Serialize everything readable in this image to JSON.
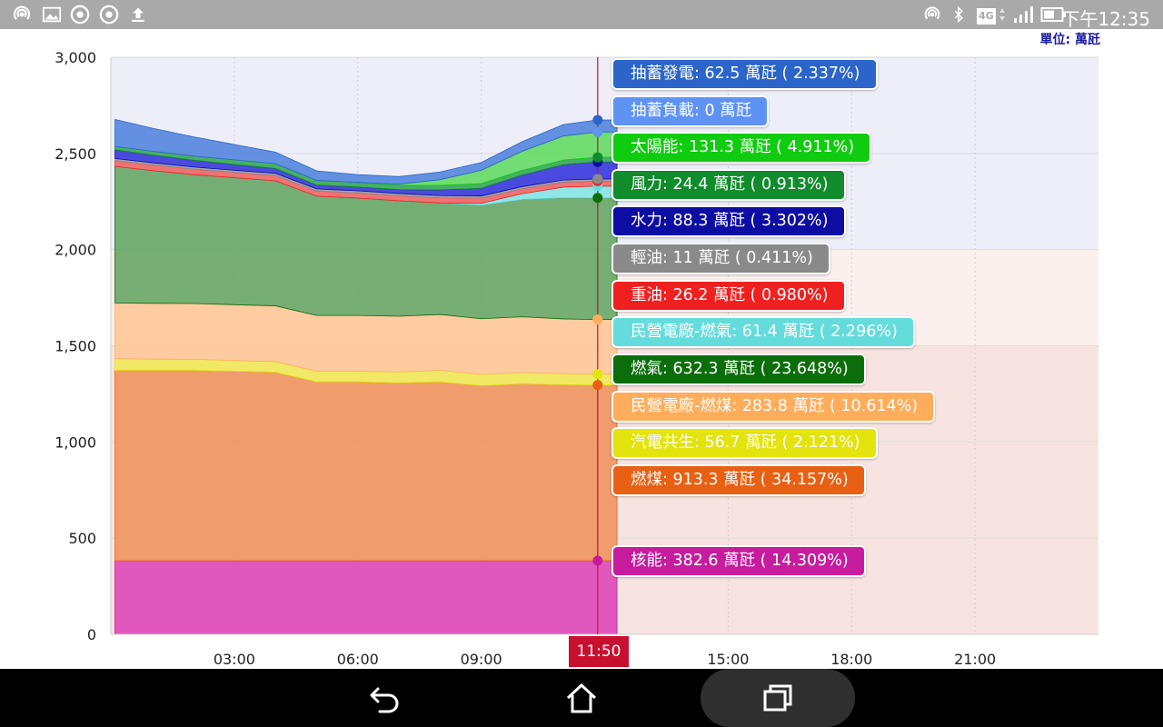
{
  "status_bar": {
    "time": "下午12:35",
    "network": "4G",
    "left_icons": [
      "hotspot-icon",
      "image-icon",
      "chrome-icon",
      "chrome-icon",
      "upload-icon"
    ],
    "right_icons": [
      "hotspot-icon",
      "bluetooth-icon",
      "network-4g-icon",
      "signal-icon",
      "battery-icon"
    ]
  },
  "unit_label": "單位: 萬瓩",
  "cursor_time": "11:50",
  "nav_bar": {
    "icons": [
      "back-icon",
      "home-icon",
      "recents-icon"
    ]
  },
  "chart_data": {
    "type": "area",
    "stacked": true,
    "x_unit": "hour",
    "xlim": [
      0,
      24
    ],
    "ylim": [
      0,
      3000
    ],
    "y_ticks": [
      0,
      500,
      1000,
      1500,
      2000,
      2500,
      3000
    ],
    "y_tick_labels": [
      "0",
      "500",
      "1,000",
      "1,500",
      "2,000",
      "2,500",
      "3,000"
    ],
    "x_ticks": [
      3,
      6,
      9,
      15,
      18,
      21
    ],
    "x_tick_labels": [
      "03:00",
      "06:00",
      "09:00",
      "15:00",
      "18:00",
      "21:00"
    ],
    "cursor_x": 11.83,
    "background_bands": [
      {
        "from": 0,
        "to": 1500,
        "color": "#f7e4e1"
      },
      {
        "from": 1500,
        "to": 2000,
        "color": "#fbf0ed"
      },
      {
        "from": 2000,
        "to": 3000,
        "color": "#eeeef8"
      }
    ],
    "x": [
      0.1,
      1,
      2,
      3,
      4,
      5,
      6,
      7,
      8,
      9,
      10,
      11,
      11.83,
      12.3
    ],
    "series": [
      {
        "name": "核能",
        "color": "#dd3fb6",
        "label_color": "#c81c9e",
        "values": [
          382.6,
          382.6,
          382.6,
          382.6,
          382.6,
          382.6,
          382.6,
          382.6,
          382.6,
          382.6,
          382.6,
          382.6,
          382.6,
          382.6
        ]
      },
      {
        "name": "燃煤",
        "color": "#ef8f57",
        "label_color": "#e86013",
        "values": [
          990,
          990,
          990,
          985,
          980,
          930,
          930,
          925,
          930,
          910,
          920,
          915,
          913.3,
          913.3
        ]
      },
      {
        "name": "汽電共生",
        "color": "#f0ea50",
        "label_color": "#e3e30e",
        "values": [
          60,
          58,
          57,
          56,
          55,
          55,
          55,
          56,
          60,
          58,
          58,
          57,
          56.7,
          56.7
        ]
      },
      {
        "name": "民營電廠-燃煤",
        "color": "#ffc593",
        "label_color": "#ffad5b",
        "values": [
          290,
          290,
          290,
          290,
          290,
          290,
          290,
          290,
          290,
          290,
          290,
          285,
          283.8,
          283.8
        ]
      },
      {
        "name": "燃氣",
        "color": "#5ea25e",
        "label_color": "#0b6e0b",
        "values": [
          710,
          690,
          670,
          660,
          650,
          620,
          610,
          600,
          580,
          590,
          610,
          630,
          632.3,
          632.3
        ]
      },
      {
        "name": "民營電廠-燃氣",
        "color": "#7fe3e3",
        "label_color": "#64dcdc",
        "values": [
          0,
          0,
          0,
          0,
          0,
          0,
          0,
          0,
          0,
          10,
          30,
          55,
          61.4,
          61.4
        ]
      },
      {
        "name": "重油",
        "color": "#f05c5c",
        "label_color": "#f02020",
        "values": [
          30,
          30,
          29,
          28,
          28,
          27,
          27,
          27,
          27,
          27,
          26,
          26,
          26.2,
          26.2
        ]
      },
      {
        "name": "輕油",
        "color": "#9a9a9a",
        "label_color": "#8a8a8a",
        "values": [
          11,
          11,
          11,
          11,
          11,
          11,
          11,
          11,
          11,
          11,
          11,
          11,
          11,
          11
        ]
      },
      {
        "name": "水力",
        "color": "#2d2ddc",
        "label_color": "#0d0da4",
        "values": [
          45,
          40,
          35,
          30,
          25,
          20,
          20,
          20,
          30,
          40,
          60,
          80,
          88.3,
          88.3
        ]
      },
      {
        "name": "風力",
        "color": "#29a44a",
        "label_color": "#118c2c",
        "values": [
          18,
          20,
          22,
          24,
          25,
          24,
          24,
          23,
          23,
          24,
          24,
          24,
          24.4,
          24.4
        ]
      },
      {
        "name": "太陽能",
        "color": "#5bd95b",
        "label_color": "#10cc10",
        "values": [
          0,
          0,
          0,
          0,
          0,
          0,
          0,
          5,
          30,
          70,
          100,
          125,
          131.3,
          131.3
        ]
      },
      {
        "name": "抽蓄負載",
        "color": "#8fb1f3",
        "label_color": "#5f93f3",
        "values": [
          0,
          0,
          0,
          0,
          0,
          0,
          0,
          0,
          0,
          0,
          0,
          0,
          0,
          0
        ]
      },
      {
        "name": "抽蓄發電",
        "color": "#4b7fdd",
        "label_color": "#2b65c9",
        "values": [
          140,
          120,
          100,
          80,
          60,
          50,
          40,
          40,
          40,
          40,
          50,
          60,
          62.5,
          62.5
        ]
      }
    ],
    "tooltips": [
      {
        "name": "抽蓄發電",
        "text": "抽蓄發電: 62.5 萬瓩 ( 2.337%)",
        "color": "#2b65c9",
        "dark": false
      },
      {
        "name": "抽蓄負載",
        "text": "抽蓄負載: 0 萬瓩",
        "color": "#5f93f3",
        "dark": false
      },
      {
        "name": "太陽能",
        "text": "太陽能: 131.3 萬瓩 ( 4.911%)",
        "color": "#10cc10",
        "dark": false
      },
      {
        "name": "風力",
        "text": "風力: 24.4 萬瓩 ( 0.913%)",
        "color": "#118c2c",
        "dark": false
      },
      {
        "name": "水力",
        "text": "水力: 88.3 萬瓩 ( 3.302%)",
        "color": "#0d0da4",
        "dark": false
      },
      {
        "name": "輕油",
        "text": "輕油: 11 萬瓩 ( 0.411%)",
        "color": "#8a8a8a",
        "dark": false
      },
      {
        "name": "重油",
        "text": "重油: 26.2 萬瓩 ( 0.980%)",
        "color": "#f02020",
        "dark": false
      },
      {
        "name": "民營電廠-燃氣",
        "text": "民營電廠-燃氣: 61.4 萬瓩 ( 2.296%)",
        "color": "#64dcdc",
        "dark": false
      },
      {
        "name": "燃氣",
        "text": "燃氣: 632.3 萬瓩 ( 23.648%)",
        "color": "#0b6e0b",
        "dark": false
      },
      {
        "name": "民營電廠-燃煤",
        "text": "民營電廠-燃煤: 283.8 萬瓩 ( 10.614%)",
        "color": "#ffad5b",
        "dark": false
      },
      {
        "name": "汽電共生",
        "text": "汽電共生: 56.7 萬瓩 ( 2.121%)",
        "color": "#e3e30e",
        "dark": false
      },
      {
        "name": "燃煤",
        "text": "燃煤: 913.3 萬瓩 ( 34.157%)",
        "color": "#e86013",
        "dark": false
      },
      {
        "name": "核能",
        "text": "核能: 382.6 萬瓩 ( 14.309%)",
        "color": "#c81c9e",
        "dark": false
      }
    ]
  }
}
